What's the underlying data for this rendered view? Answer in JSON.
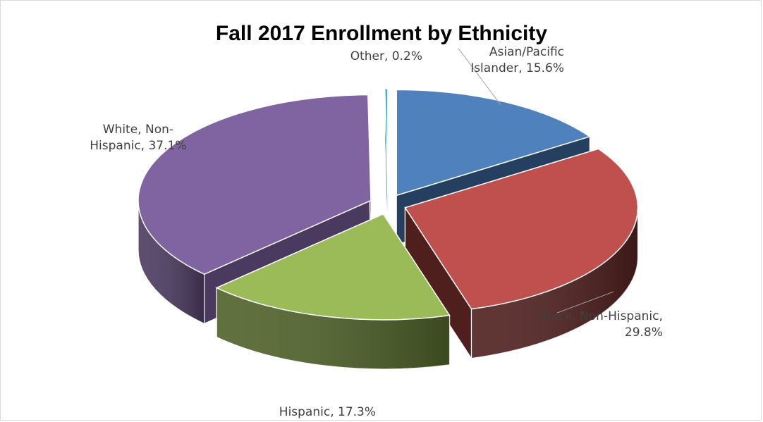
{
  "chart_data": {
    "type": "pie",
    "title": "Fall 2017 Enrollment by Ethnicity",
    "slices": [
      {
        "name": "Asian/Pacific Islander",
        "value": 15.6,
        "label_lines": [
          "Asian/Pacific",
          "Islander, 15.6%"
        ],
        "color": "#4f81bd",
        "side_color": "#243f60"
      },
      {
        "name": "Black, Non-Hispanic",
        "value": 29.8,
        "label_lines": [
          "Black, Non-Hispanic,",
          "29.8%"
        ],
        "color": "#c0504d",
        "side_color": "#4f1f1e"
      },
      {
        "name": "Hispanic",
        "value": 17.3,
        "label_lines": [
          "Hispanic, 17.3%"
        ],
        "color": "#9bbb59",
        "side_color": "#4e6128"
      },
      {
        "name": "White, Non-Hispanic",
        "value": 37.1,
        "label_lines": [
          "White, Non-",
          "Hispanic, 37.1%"
        ],
        "color": "#8064a2",
        "side_color": "#4b3a60"
      },
      {
        "name": "Other",
        "value": 0.2,
        "label_lines": [
          "Other, 0.2%"
        ],
        "color": "#4bacc6",
        "side_color": "#215968"
      }
    ],
    "legend": "none",
    "exploded": true,
    "style": "3d"
  }
}
